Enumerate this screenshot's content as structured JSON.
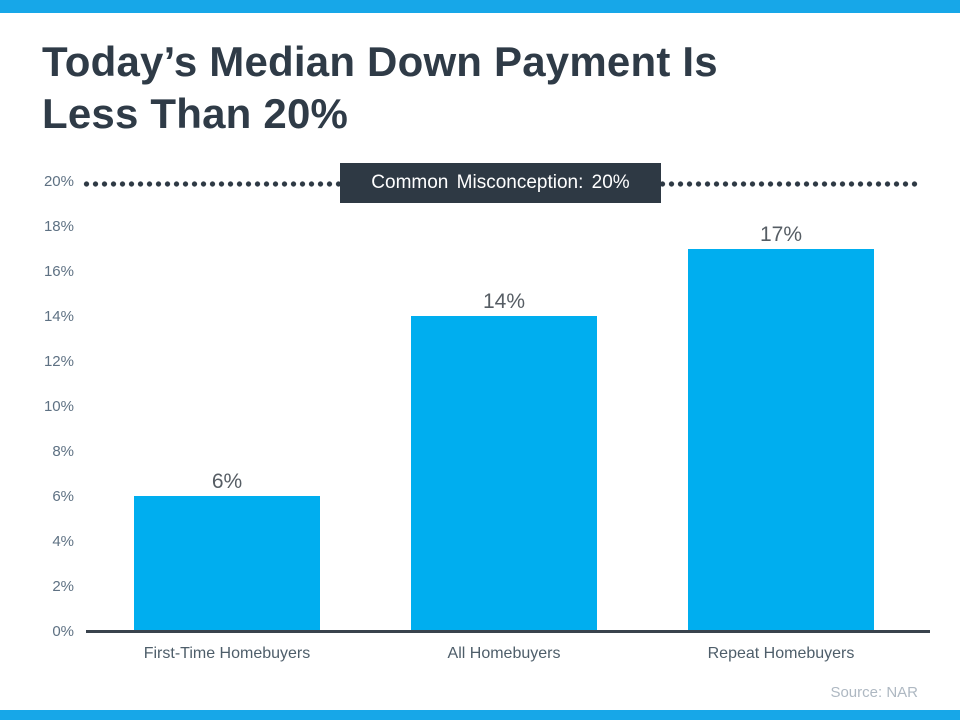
{
  "title": {
    "line1": "Today’s Median Down Payment Is",
    "line2": "Less Than 20%"
  },
  "annotation": {
    "label": "Common Misconception: 20%"
  },
  "footer": {
    "source": "Source: NAR"
  },
  "colors": {
    "accent_bar": "#17A7E8",
    "bar_fill": "#00AEEF",
    "dark_slate": "#2E3944",
    "title_text": "#2F3B47",
    "axis_label": "#5E7183",
    "axis_line": "#39434D",
    "category_label": "#4E5E6A",
    "value_label": "#565D64",
    "source_text": "#AEB8C2",
    "callout_bg": "#2E3944",
    "callout_text": "#FFFFFF"
  },
  "chart_data": {
    "type": "bar",
    "title": "Today’s Median Down Payment Is Less Than 20%",
    "categories": [
      "First-Time Homebuyers",
      "All Homebuyers",
      "Repeat Homebuyers"
    ],
    "values": [
      6,
      14,
      17
    ],
    "value_labels": [
      "6%",
      "14%",
      "17%"
    ],
    "xlabel": "",
    "ylabel": "",
    "ylim": [
      0,
      20
    ],
    "ytick_interval": 2,
    "ytick_labels": [
      "0%",
      "2%",
      "4%",
      "6%",
      "8%",
      "10%",
      "12%",
      "14%",
      "16%",
      "18%",
      "20%"
    ],
    "grid": false,
    "legend": "none",
    "reference_line": {
      "value": 20,
      "style": "dotted",
      "label": "Common Misconception: 20%"
    },
    "source": "Source: NAR"
  }
}
